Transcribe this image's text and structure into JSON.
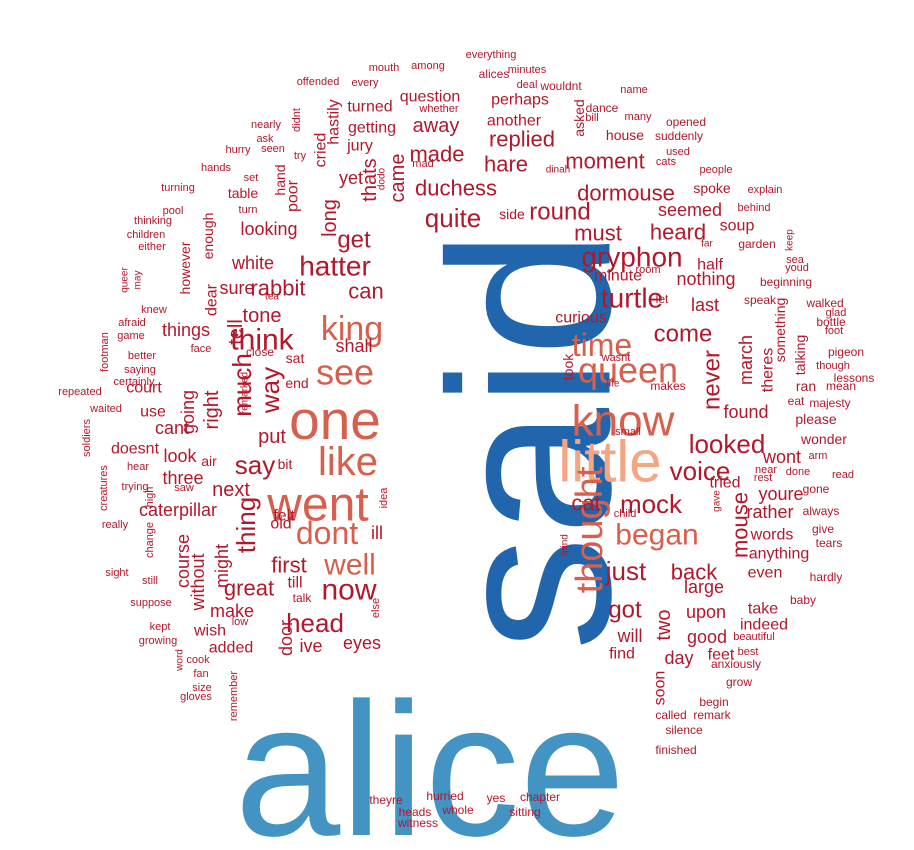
{
  "colors": {
    "darkblue": "#2166ac",
    "blue": "#4393c3",
    "peach": "#f4a582",
    "salmon": "#d6604d",
    "red": "#b2182b"
  },
  "words": [
    {
      "text": "alice",
      "color": "blue"
    },
    {
      "text": "said",
      "color": "darkblue"
    },
    {
      "text": "little",
      "color": "peach"
    },
    {
      "text": "one",
      "color": "salmon"
    },
    {
      "text": "went",
      "color": "salmon"
    },
    {
      "text": "like",
      "color": "salmon"
    },
    {
      "text": "know",
      "color": "salmon"
    },
    {
      "text": "thought",
      "color": "salmon"
    },
    {
      "text": "queen",
      "color": "salmon"
    },
    {
      "text": "see",
      "color": "salmon"
    },
    {
      "text": "king",
      "color": "salmon"
    },
    {
      "text": "time",
      "color": "salmon"
    },
    {
      "text": "dont",
      "color": "salmon"
    },
    {
      "text": "well",
      "color": "salmon"
    },
    {
      "text": "began",
      "color": "salmon"
    },
    {
      "text": "now",
      "color": "red"
    },
    {
      "text": "think",
      "color": "red"
    },
    {
      "text": "hatter",
      "color": "red"
    },
    {
      "text": "gryphon",
      "color": "red"
    },
    {
      "text": "turtle",
      "color": "red"
    },
    {
      "text": "mock",
      "color": "red"
    },
    {
      "text": "quite",
      "color": "red"
    },
    {
      "text": "say",
      "color": "red"
    },
    {
      "text": "head",
      "color": "red"
    },
    {
      "text": "just",
      "color": "red"
    },
    {
      "text": "voice",
      "color": "red"
    },
    {
      "text": "looked",
      "color": "red"
    },
    {
      "text": "got",
      "color": "red"
    },
    {
      "text": "way",
      "color": "red"
    },
    {
      "text": "much",
      "color": "red"
    },
    {
      "text": "thing",
      "color": "red"
    },
    {
      "text": "round",
      "color": "red"
    },
    {
      "text": "come",
      "color": "red"
    },
    {
      "text": "never",
      "color": "red"
    },
    {
      "text": "get",
      "color": "red"
    },
    {
      "text": "duchess",
      "color": "red"
    },
    {
      "text": "dormouse",
      "color": "red"
    },
    {
      "text": "must",
      "color": "red"
    },
    {
      "text": "great",
      "color": "red"
    },
    {
      "text": "first",
      "color": "red"
    },
    {
      "text": "back",
      "color": "red"
    },
    {
      "text": "mouse",
      "color": "red"
    },
    {
      "text": "rabbit",
      "color": "red"
    },
    {
      "text": "made",
      "color": "red"
    },
    {
      "text": "moment",
      "color": "red"
    },
    {
      "text": "replied",
      "color": "red"
    },
    {
      "text": "heard",
      "color": "red"
    },
    {
      "text": "hare",
      "color": "red"
    },
    {
      "text": "away",
      "color": "red"
    },
    {
      "text": "can",
      "color": "red"
    },
    {
      "text": "cat",
      "color": "red"
    },
    {
      "text": "next",
      "color": "red"
    },
    {
      "text": "put",
      "color": "red"
    },
    {
      "text": "tone",
      "color": "red"
    },
    {
      "text": "sure",
      "color": "red"
    },
    {
      "text": "white",
      "color": "red"
    },
    {
      "text": "looking",
      "color": "red"
    },
    {
      "text": "caterpillar",
      "color": "red"
    },
    {
      "text": "three",
      "color": "red"
    },
    {
      "text": "look",
      "color": "red"
    },
    {
      "text": "cant",
      "color": "red"
    },
    {
      "text": "right",
      "color": "red"
    },
    {
      "text": "going",
      "color": "red"
    },
    {
      "text": "things",
      "color": "red"
    },
    {
      "text": "tell",
      "color": "red"
    },
    {
      "text": "shall",
      "color": "red"
    },
    {
      "text": "long",
      "color": "red"
    },
    {
      "text": "came",
      "color": "red"
    },
    {
      "text": "thats",
      "color": "red"
    },
    {
      "text": "yet",
      "color": "red"
    },
    {
      "text": "seemed",
      "color": "red"
    },
    {
      "text": "nothing",
      "color": "red"
    },
    {
      "text": "last",
      "color": "red"
    },
    {
      "text": "half",
      "color": "red"
    },
    {
      "text": "minute",
      "color": "red"
    },
    {
      "text": "curious",
      "color": "red"
    },
    {
      "text": "found",
      "color": "red"
    },
    {
      "text": "wont",
      "color": "red"
    },
    {
      "text": "youre",
      "color": "red"
    },
    {
      "text": "tried",
      "color": "red"
    },
    {
      "text": "rather",
      "color": "red"
    },
    {
      "text": "two",
      "color": "red"
    },
    {
      "text": "will",
      "color": "red"
    },
    {
      "text": "large",
      "color": "red"
    },
    {
      "text": "upon",
      "color": "red"
    },
    {
      "text": "good",
      "color": "red"
    },
    {
      "text": "day",
      "color": "red"
    },
    {
      "text": "find",
      "color": "red"
    },
    {
      "text": "soon",
      "color": "red"
    },
    {
      "text": "feet",
      "color": "red"
    },
    {
      "text": "even",
      "color": "red"
    },
    {
      "text": "indeed",
      "color": "red"
    },
    {
      "text": "take",
      "color": "red"
    },
    {
      "text": "march",
      "color": "red"
    },
    {
      "text": "theres",
      "color": "red"
    },
    {
      "text": "anything",
      "color": "red"
    },
    {
      "text": "words",
      "color": "red"
    },
    {
      "text": "course",
      "color": "red"
    },
    {
      "text": "without",
      "color": "red"
    },
    {
      "text": "might",
      "color": "red"
    },
    {
      "text": "make",
      "color": "red"
    },
    {
      "text": "wish",
      "color": "red"
    },
    {
      "text": "added",
      "color": "red"
    },
    {
      "text": "door",
      "color": "red"
    },
    {
      "text": "ive",
      "color": "red"
    },
    {
      "text": "eyes",
      "color": "red"
    },
    {
      "text": "felt",
      "color": "red"
    },
    {
      "text": "old",
      "color": "red"
    },
    {
      "text": "ill",
      "color": "red"
    },
    {
      "text": "till",
      "color": "red"
    },
    {
      "text": "talk",
      "color": "red"
    },
    {
      "text": "bit",
      "color": "red"
    },
    {
      "text": "air",
      "color": "red"
    },
    {
      "text": "use",
      "color": "red"
    },
    {
      "text": "court",
      "color": "red"
    },
    {
      "text": "doesnt",
      "color": "red"
    },
    {
      "text": "end",
      "color": "red"
    },
    {
      "text": "sat",
      "color": "red"
    },
    {
      "text": "close",
      "color": "red"
    },
    {
      "text": "poor",
      "color": "red"
    },
    {
      "text": "dear",
      "color": "red"
    },
    {
      "text": "however",
      "color": "red"
    },
    {
      "text": "enough",
      "color": "red"
    },
    {
      "text": "table",
      "color": "red"
    },
    {
      "text": "hand",
      "color": "red"
    },
    {
      "text": "jury",
      "color": "red"
    },
    {
      "text": "getting",
      "color": "red"
    },
    {
      "text": "turned",
      "color": "red"
    },
    {
      "text": "question",
      "color": "red"
    },
    {
      "text": "another",
      "color": "red"
    },
    {
      "text": "perhaps",
      "color": "red"
    },
    {
      "text": "house",
      "color": "red"
    },
    {
      "text": "side",
      "color": "red"
    },
    {
      "text": "soup",
      "color": "red"
    },
    {
      "text": "spoke",
      "color": "red"
    },
    {
      "text": "hastily",
      "color": "red"
    },
    {
      "text": "cried",
      "color": "red"
    },
    {
      "text": "asked",
      "color": "red"
    },
    {
      "text": "please",
      "color": "red"
    },
    {
      "text": "wonder",
      "color": "red"
    },
    {
      "text": "majesty",
      "color": "red"
    },
    {
      "text": "talking",
      "color": "red"
    },
    {
      "text": "something",
      "color": "red"
    },
    {
      "text": "garden",
      "color": "red"
    },
    {
      "text": "speak",
      "color": "red"
    },
    {
      "text": "beginning",
      "color": "red"
    },
    {
      "text": "suddenly",
      "color": "red"
    },
    {
      "text": "opened",
      "color": "red"
    },
    {
      "text": "everything",
      "color": "red"
    },
    {
      "text": "minutes",
      "color": "red"
    },
    {
      "text": "alices",
      "color": "red"
    },
    {
      "text": "deal",
      "color": "red"
    },
    {
      "text": "wouldnt",
      "color": "red"
    },
    {
      "text": "among",
      "color": "red"
    },
    {
      "text": "mouth",
      "color": "red"
    },
    {
      "text": "offended",
      "color": "red"
    },
    {
      "text": "every",
      "color": "red"
    },
    {
      "text": "whether",
      "color": "red"
    },
    {
      "text": "nearly",
      "color": "red"
    },
    {
      "text": "didnt",
      "color": "red"
    },
    {
      "text": "ask",
      "color": "red"
    },
    {
      "text": "seen",
      "color": "red"
    },
    {
      "text": "hurry",
      "color": "red"
    },
    {
      "text": "try",
      "color": "red"
    },
    {
      "text": "hands",
      "color": "red"
    },
    {
      "text": "mad",
      "color": "red"
    },
    {
      "text": "set",
      "color": "red"
    },
    {
      "text": "turning",
      "color": "red"
    },
    {
      "text": "turn",
      "color": "red"
    },
    {
      "text": "pool",
      "color": "red"
    },
    {
      "text": "thinking",
      "color": "red"
    },
    {
      "text": "children",
      "color": "red"
    },
    {
      "text": "either",
      "color": "red"
    },
    {
      "text": "queer",
      "color": "red"
    },
    {
      "text": "may",
      "color": "red"
    },
    {
      "text": "knew",
      "color": "red"
    },
    {
      "text": "afraid",
      "color": "red"
    },
    {
      "text": "game",
      "color": "red"
    },
    {
      "text": "footman",
      "color": "red"
    },
    {
      "text": "better",
      "color": "red"
    },
    {
      "text": "face",
      "color": "red"
    },
    {
      "text": "saying",
      "color": "red"
    },
    {
      "text": "repeated",
      "color": "red"
    },
    {
      "text": "certainly",
      "color": "red"
    },
    {
      "text": "waited",
      "color": "red"
    },
    {
      "text": "soldiers",
      "color": "red"
    },
    {
      "text": "hear",
      "color": "red"
    },
    {
      "text": "creatures",
      "color": "red"
    },
    {
      "text": "trying",
      "color": "red"
    },
    {
      "text": "saw",
      "color": "red"
    },
    {
      "text": "high",
      "color": "red"
    },
    {
      "text": "really",
      "color": "red"
    },
    {
      "text": "change",
      "color": "red"
    },
    {
      "text": "sight",
      "color": "red"
    },
    {
      "text": "still",
      "color": "red"
    },
    {
      "text": "suppose",
      "color": "red"
    },
    {
      "text": "kept",
      "color": "red"
    },
    {
      "text": "growing",
      "color": "red"
    },
    {
      "text": "low",
      "color": "red"
    },
    {
      "text": "cook",
      "color": "red"
    },
    {
      "text": "word",
      "color": "red"
    },
    {
      "text": "fan",
      "color": "red"
    },
    {
      "text": "size",
      "color": "red"
    },
    {
      "text": "gloves",
      "color": "red"
    },
    {
      "text": "remember",
      "color": "red"
    },
    {
      "text": "idea",
      "color": "red"
    },
    {
      "text": "else",
      "color": "red"
    },
    {
      "text": "tea",
      "color": "red"
    },
    {
      "text": "remarked",
      "color": "red"
    },
    {
      "text": "theyre",
      "color": "red"
    },
    {
      "text": "hurried",
      "color": "red"
    },
    {
      "text": "heads",
      "color": "red"
    },
    {
      "text": "whole",
      "color": "red"
    },
    {
      "text": "yes",
      "color": "red"
    },
    {
      "text": "chapter",
      "color": "red"
    },
    {
      "text": "witness",
      "color": "red"
    },
    {
      "text": "sitting",
      "color": "red"
    },
    {
      "text": "called",
      "color": "red"
    },
    {
      "text": "remark",
      "color": "red"
    },
    {
      "text": "silence",
      "color": "red"
    },
    {
      "text": "finished",
      "color": "red"
    },
    {
      "text": "begin",
      "color": "red"
    },
    {
      "text": "anxiously",
      "color": "red"
    },
    {
      "text": "grow",
      "color": "red"
    },
    {
      "text": "beautiful",
      "color": "red"
    },
    {
      "text": "best",
      "color": "red"
    },
    {
      "text": "baby",
      "color": "red"
    },
    {
      "text": "hardly",
      "color": "red"
    },
    {
      "text": "tears",
      "color": "red"
    },
    {
      "text": "give",
      "color": "red"
    },
    {
      "text": "always",
      "color": "red"
    },
    {
      "text": "gone",
      "color": "red"
    },
    {
      "text": "read",
      "color": "red"
    },
    {
      "text": "done",
      "color": "red"
    },
    {
      "text": "arm",
      "color": "red"
    },
    {
      "text": "near",
      "color": "red"
    },
    {
      "text": "rest",
      "color": "red"
    },
    {
      "text": "pigeon",
      "color": "red"
    },
    {
      "text": "though",
      "color": "red"
    },
    {
      "text": "lessons",
      "color": "red"
    },
    {
      "text": "ran",
      "color": "red"
    },
    {
      "text": "mean",
      "color": "red"
    },
    {
      "text": "eat",
      "color": "red"
    },
    {
      "text": "bottle",
      "color": "red"
    },
    {
      "text": "glad",
      "color": "red"
    },
    {
      "text": "foot",
      "color": "red"
    },
    {
      "text": "walked",
      "color": "red"
    },
    {
      "text": "youd",
      "color": "red"
    },
    {
      "text": "sea",
      "color": "red"
    },
    {
      "text": "keep",
      "color": "red"
    },
    {
      "text": "far",
      "color": "red"
    },
    {
      "text": "explain",
      "color": "red"
    },
    {
      "text": "behind",
      "color": "red"
    },
    {
      "text": "people",
      "color": "red"
    },
    {
      "text": "used",
      "color": "red"
    },
    {
      "text": "cats",
      "color": "red"
    },
    {
      "text": "many",
      "color": "red"
    },
    {
      "text": "name",
      "color": "red"
    },
    {
      "text": "dance",
      "color": "red"
    },
    {
      "text": "bill",
      "color": "red"
    },
    {
      "text": "let",
      "color": "red"
    },
    {
      "text": "dinah",
      "color": "red"
    },
    {
      "text": "room",
      "color": "red"
    },
    {
      "text": "wasnt",
      "color": "red"
    },
    {
      "text": "took",
      "color": "red"
    },
    {
      "text": "makes",
      "color": "red"
    },
    {
      "text": "life",
      "color": "red"
    },
    {
      "text": "small",
      "color": "red"
    },
    {
      "text": "child",
      "color": "red"
    },
    {
      "text": "gave",
      "color": "red"
    },
    {
      "text": "mind",
      "color": "red"
    },
    {
      "text": "dodo",
      "color": "red"
    }
  ]
}
